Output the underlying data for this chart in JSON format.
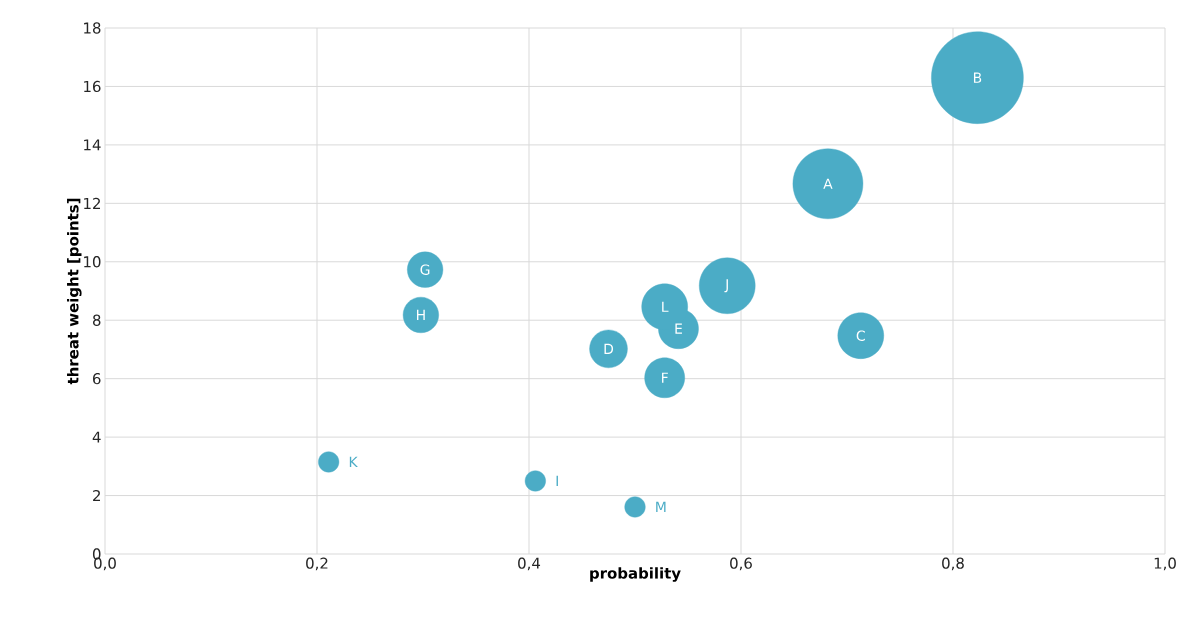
{
  "chart_data": {
    "type": "bubble",
    "xlabel": "probability",
    "ylabel": "threat weight [points]",
    "x": [
      0.682,
      0.823,
      0.713,
      0.475,
      0.541,
      0.528,
      0.302,
      0.298,
      0.406,
      0.587,
      0.211,
      0.528,
      0.5
    ],
    "values": [
      12.67,
      16.3,
      7.47,
      7.02,
      7.71,
      6.03,
      9.73,
      8.18,
      2.5,
      9.18,
      3.15,
      8.46,
      1.61
    ],
    "sizes": [
      0.58,
      1,
      0.25,
      0.17,
      0.19,
      0.19,
      0.15,
      0.15,
      0.05,
      0.37,
      0.05,
      0.25,
      0.05
    ],
    "color": "#4bacc6",
    "annotations": [
      {
        "text": "A",
        "x": 0.682,
        "y": 12.67
      },
      {
        "text": "B",
        "x": 0.823,
        "y": 16.3
      },
      {
        "text": "C",
        "x": 0.713,
        "y": 7.47
      },
      {
        "text": "D",
        "x": 0.475,
        "y": 7.02
      },
      {
        "text": "E",
        "x": 0.541,
        "y": 7.71
      },
      {
        "text": "F",
        "x": 0.528,
        "y": 6.03
      },
      {
        "text": "G",
        "x": 0.302,
        "y": 9.73
      },
      {
        "text": "H",
        "x": 0.298,
        "y": 8.18
      },
      {
        "text": "I",
        "x": 0.406,
        "y": 2.5
      },
      {
        "text": "J",
        "x": 0.587,
        "y": 9.18
      },
      {
        "text": "K",
        "x": 0.211,
        "y": 3.15
      },
      {
        "text": "L",
        "x": 0.528,
        "y": 8.46
      },
      {
        "text": "M",
        "x": 0.5,
        "y": 1.61
      }
    ],
    "xlim": [
      0,
      1
    ],
    "xticks": [
      {
        "value": 0,
        "label": "0,0"
      },
      {
        "value": 0.2,
        "label": "0,2"
      },
      {
        "value": 0.4,
        "label": "0,4"
      },
      {
        "value": 0.6,
        "label": "0,6"
      },
      {
        "value": 0.8,
        "label": "0,8"
      },
      {
        "value": 1,
        "label": "1,0"
      }
    ],
    "ylim": [
      0,
      18
    ],
    "yticks": [
      0,
      2,
      4,
      6,
      8,
      10,
      12,
      14,
      16,
      18
    ],
    "grid": true
  }
}
